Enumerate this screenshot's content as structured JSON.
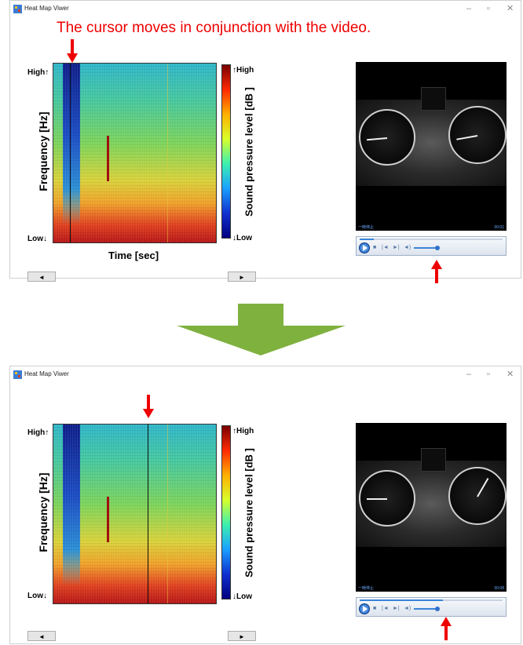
{
  "caption": "The cursor moves in conjunction with the video.",
  "windows": [
    {
      "title": "Heat Map Viwer",
      "controls": {
        "minimize": "–",
        "maximize": "▫",
        "close": "✕"
      },
      "heatmap": {
        "y_high": "High↑",
        "y_low": "Low↓",
        "y_label": "Frequency  [Hz]",
        "x_label": "Time  [sec]",
        "cursor_position": 0.1
      },
      "colorbar": {
        "high": "↑High",
        "low": "↓Low",
        "label": "Sound pressure level [dB ]"
      },
      "buttons": {
        "prev": "◄",
        "next": "►"
      },
      "video": {
        "status": "一時停止",
        "time": "00:01",
        "seek_progress": 0.1
      }
    },
    {
      "title": "Heat Map Viwer",
      "controls": {
        "minimize": "–",
        "maximize": "▫",
        "close": "✕"
      },
      "heatmap": {
        "y_high": "High↑",
        "y_low": "Low↓",
        "y_label": "Frequency  [Hz]",
        "x_label": "",
        "cursor_position": 0.58
      },
      "colorbar": {
        "high": "↑High",
        "low": "↓Low",
        "label": "Sound pressure level [dB ]"
      },
      "buttons": {
        "prev": "◄",
        "next": "►"
      },
      "video": {
        "status": "一時停止",
        "time": "00:08",
        "seek_progress": 0.58
      }
    }
  ],
  "colors": {
    "annotation": "#e00000",
    "transition_arrow": "#7fb13f"
  }
}
